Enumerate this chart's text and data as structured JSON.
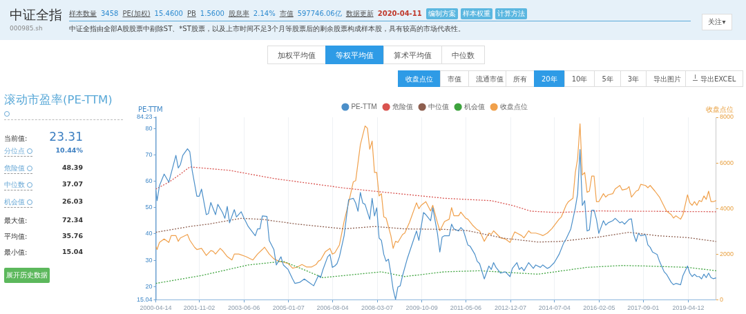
{
  "chart_data": [
    {
      "type": "other",
      "title": "中证全指",
      "subtitle": "000985.sh",
      "annotations": [
        "样本数量",
        "3458",
        "PE(加权)",
        "15.4600",
        "PB",
        "1.5600",
        "股息率",
        "2.14%",
        "市值",
        "597746.06亿",
        "数据更新",
        "2020-04-11",
        "编制方案",
        "样本权重",
        "计算方法",
        "中证全指由全部A股股票中剔除ST、*ST股票，以及上市时间不足3个月等股票后的剩余股票构成样本股，具有较高的市场代表性。",
        "关注▾"
      ]
    },
    {
      "type": "other",
      "annotations": [
        "加权平均值",
        "等权平均值",
        "算术平均值",
        "中位数"
      ]
    },
    {
      "type": "other",
      "annotations": [
        "收盘点位",
        "市值",
        "流通市值",
        "所有",
        "20年",
        "10年",
        "5年",
        "3年",
        "导出图片",
        "导出EXCEL"
      ]
    },
    {
      "type": "other",
      "title": "滚动市盈率(PE-TTM)",
      "annotations": [
        "当前值:",
        "23.31",
        "分位点",
        "10.44%",
        "危险值",
        "48.39",
        "中位数",
        "37.07",
        "机会值",
        "26.03",
        "最大值:",
        "72.34",
        "平均值:",
        "35.76",
        "最小值:",
        "15.04",
        "展开历史数据"
      ]
    },
    {
      "type": "line",
      "ylabel": "PE-TTM",
      "y2label": "收盘点位",
      "xlim": [
        "2000-04-14",
        "2020-04-10"
      ],
      "xticks": [
        "2000-04-14",
        "2001-11-02",
        "2003-06-06",
        "2005-01-07",
        "2006-08-04",
        "2008-03-07",
        "2009-10-09",
        "2011-05-06",
        "2012-12-07",
        "2014-07-04",
        "2016-02-05",
        "2017-09-01",
        "2019-04-12"
      ],
      "ylim": [
        15.04,
        84.23
      ],
      "yticks": [
        15.04,
        20,
        30,
        40,
        50,
        60,
        70,
        80,
        84.23
      ],
      "y2lim": [
        0,
        8000
      ],
      "y2ticks": [
        0,
        2000,
        4000,
        6000,
        8000
      ],
      "grid": "x",
      "legend": "top",
      "marker": "none",
      "series": [
        {
          "name": "PE-TTM",
          "color": "#4b8fc9",
          "line_style": "solid",
          "x": [
            "2000-04-14",
            "2000-05",
            "2000-06",
            "2000-08",
            "2000-10",
            "2001-01",
            "2001-02",
            "2001-03",
            "2001-04",
            "2001-06",
            "2001-07",
            "2001-08",
            "2001-10",
            "2001-11",
            "2001-12",
            "2002-02",
            "2002-03",
            "2002-04",
            "2002-06",
            "2002-07",
            "2002-09",
            "2002-10",
            "2002-11",
            "2002-12",
            "2003-02",
            "2003-03",
            "2003-05",
            "2003-06",
            "2003-08",
            "2003-11",
            "2003-12",
            "2004-01",
            "2004-02",
            "2004-04",
            "2004-05",
            "2004-07",
            "2004-08",
            "2004-10",
            "2004-11",
            "2005-01",
            "2005-03",
            "2005-04",
            "2005-06",
            "2005-08",
            "2005-10",
            "2005-12",
            "2006-02",
            "2006-03",
            "2006-04",
            "2006-06",
            "2006-07",
            "2006-08",
            "2006-09",
            "2006-10",
            "2006-11",
            "2007-01",
            "2007-03",
            "2007-05",
            "2007-06",
            "2007-07",
            "2007-08",
            "2007-09",
            "2007-10",
            "2007-12",
            "2008-01",
            "2008-02",
            "2008-03",
            "2008-04",
            "2008-05",
            "2008-06",
            "2008-07",
            "2008-08",
            "2008-09",
            "2008-10",
            "2008-11",
            "2008-12",
            "2009-01",
            "2009-02",
            "2009-04",
            "2009-08",
            "2009-09",
            "2009-11",
            "2009-12",
            "2010-02",
            "2010-03",
            "2010-05",
            "2010-06",
            "2010-07",
            "2010-08",
            "2010-10",
            "2010-11",
            "2010-12",
            "2011-02",
            "2011-03",
            "2011-04",
            "2011-06",
            "2011-07",
            "2011-09",
            "2011-10",
            "2011-11",
            "2012-01",
            "2012-03",
            "2012-04",
            "2012-05",
            "2012-06",
            "2012-08",
            "2012-10",
            "2012-12",
            "2013-01",
            "2013-03",
            "2013-04",
            "2013-05",
            "2013-06",
            "2013-08",
            "2013-10",
            "2013-11",
            "2014-01",
            "2014-02",
            "2014-04",
            "2014-05",
            "2014-07",
            "2014-09",
            "2014-11",
            "2014-12",
            "2015-02",
            "2015-04",
            "2015-05",
            "2015-06",
            "2015-07",
            "2015-08",
            "2015-09",
            "2015-10",
            "2015-11",
            "2015-12",
            "2016-01",
            "2016-02",
            "2016-04",
            "2016-05",
            "2016-06",
            "2016-08",
            "2016-09",
            "2016-11",
            "2016-12",
            "2017-01",
            "2017-03",
            "2017-04",
            "2017-05",
            "2017-06",
            "2017-07",
            "2017-08",
            "2017-10",
            "2017-11",
            "2017-12",
            "2018-01",
            "2018-03",
            "2018-04",
            "2018-06",
            "2018-07",
            "2018-09",
            "2018-10",
            "2018-11",
            "2019-01",
            "2019-02",
            "2019-04",
            "2019-05",
            "2019-06",
            "2019-07",
            "2019-08",
            "2019-09",
            "2019-10",
            "2019-11",
            "2019-12",
            "2020-01",
            "2020-02",
            "2020-03",
            "2020-04-10"
          ],
          "values": [
            56.5,
            52.6,
            58.3,
            62.7,
            59.6,
            69.8,
            65.0,
            66.3,
            69.8,
            72.3,
            71.2,
            64.1,
            54.3,
            54.3,
            57.0,
            47.3,
            47.7,
            51.9,
            47.3,
            51.2,
            48.1,
            45.9,
            50.4,
            44.2,
            49.2,
            46.4,
            48.4,
            46.4,
            42.8,
            39.3,
            41.9,
            41.9,
            46.8,
            46.6,
            37.5,
            34.0,
            28.2,
            31.3,
            28.2,
            26.5,
            22.9,
            21.2,
            21.6,
            22.9,
            21.6,
            20.3,
            24.2,
            23.4,
            26.5,
            31.3,
            32.2,
            27.3,
            27.8,
            28.7,
            31.3,
            39.3,
            53.0,
            53.5,
            51.7,
            48.6,
            55.7,
            51.7,
            51.2,
            45.5,
            53.5,
            46.8,
            49.9,
            38.4,
            37.5,
            32.2,
            29.6,
            30.4,
            25.1,
            18.9,
            15.1,
            19.8,
            20.3,
            24.2,
            30.4,
            41.1,
            37.5,
            48.1,
            47.3,
            45.0,
            49.9,
            40.2,
            33.1,
            38.8,
            39.3,
            39.3,
            43.7,
            41.9,
            41.1,
            42.4,
            41.5,
            35.8,
            35.3,
            32.2,
            29.6,
            28.7,
            22.9,
            27.8,
            26.5,
            29.1,
            27.3,
            25.1,
            25.6,
            23.8,
            26.9,
            29.1,
            26.5,
            27.3,
            26.0,
            29.1,
            26.9,
            28.2,
            27.3,
            28.2,
            26.9,
            27.3,
            29.1,
            32.2,
            36.6,
            38.0,
            41.9,
            49.9,
            55.2,
            72.0,
            50.8,
            52.6,
            41.1,
            41.5,
            49.0,
            49.0,
            45.5,
            40.2,
            45.0,
            43.3,
            44.2,
            45.0,
            45.9,
            44.2,
            44.6,
            43.7,
            45.5,
            45.7,
            39.7,
            37.1,
            40.2,
            39.3,
            39.7,
            35.8,
            34.9,
            33.1,
            32.2,
            29.6,
            25.6,
            24.7,
            21.6,
            20.7,
            21.2,
            20.7,
            24.2,
            27.8,
            25.1,
            23.8,
            24.7,
            23.8,
            23.8,
            22.9,
            24.7,
            23.4,
            25.1,
            23.4,
            23.0,
            23.3
          ]
        },
        {
          "name": "危险值",
          "color": "#d9534f",
          "line_style": "dotted",
          "x": [
            "2000-04-14",
            "2000-10",
            "2001-03",
            "2001-07",
            "2002-12",
            "2004-07",
            "2007-01",
            "2008-03",
            "2010-08",
            "2012-04",
            "2013-01",
            "2013-09",
            "2014-08",
            "2016-02",
            "2020-04-10"
          ],
          "values": [
            57.0,
            59.6,
            62.7,
            65.4,
            64.1,
            61.0,
            57.4,
            56.1,
            53.5,
            52.6,
            50.8,
            48.6,
            48.1,
            48.7,
            48.4
          ]
        },
        {
          "name": "中位值",
          "color": "#8d5e4e",
          "line_style": "dotted",
          "x": [
            "2000-04-14",
            "2001-07",
            "2002-03",
            "2003-05",
            "2004-02",
            "2005-05",
            "2007-01",
            "2008-02",
            "2009-03",
            "2010-08",
            "2011-06",
            "2012-09",
            "2013-12",
            "2014-09",
            "2016-02",
            "2017-03",
            "2018-03",
            "2019-04",
            "2020-04-10"
          ],
          "values": [
            40.6,
            42.8,
            43.7,
            45.9,
            45.5,
            43.7,
            41.9,
            42.8,
            41.9,
            41.7,
            41.2,
            38.4,
            36.9,
            37.1,
            38.8,
            40.6,
            39.3,
            38.6,
            37.1
          ]
        },
        {
          "name": "机会值",
          "color": "#3da33d",
          "line_style": "dotted",
          "x": [
            "2000-04-14",
            "2001-12",
            "2003-08",
            "2004-11",
            "2006-04",
            "2008-05",
            "2009-03",
            "2010-08",
            "2011-11",
            "2013-12",
            "2015-09",
            "2016-12",
            "2017-10",
            "2019-04",
            "2020-04-10"
          ],
          "values": [
            21.2,
            24.2,
            28.2,
            29.6,
            23.4,
            25.6,
            23.8,
            25.6,
            26.0,
            24.7,
            27.3,
            28.0,
            27.8,
            27.3,
            26.0
          ]
        },
        {
          "name": "收盘点位",
          "color": "#f0a04b",
          "line_style": "solid",
          "axis": "y2",
          "x": [
            "2000-04-14",
            "2000-05",
            "2000-06",
            "2000-08",
            "2000-10",
            "2000-11",
            "2001-01",
            "2001-02",
            "2001-03",
            "2001-06",
            "2001-07",
            "2001-09",
            "2001-10",
            "2001-12",
            "2002-02",
            "2002-04",
            "2002-05",
            "2002-06",
            "2002-08",
            "2002-09",
            "2002-11",
            "2003-01",
            "2003-02",
            "2003-04",
            "2003-07",
            "2003-10",
            "2003-12",
            "2004-02",
            "2004-03",
            "2004-05",
            "2004-07",
            "2004-09",
            "2004-11",
            "2005-01",
            "2005-03",
            "2005-05",
            "2005-07",
            "2005-09",
            "2005-11",
            "2006-01",
            "2006-02",
            "2006-03",
            "2006-05",
            "2006-07",
            "2006-08",
            "2006-09",
            "2006-11",
            "2007-01",
            "2007-03",
            "2007-05",
            "2007-06",
            "2007-08",
            "2007-10",
            "2007-11",
            "2007-12",
            "2008-01",
            "2008-02",
            "2008-03",
            "2008-04",
            "2008-05",
            "2008-06",
            "2008-07",
            "2008-09",
            "2008-10",
            "2008-11",
            "2008-12",
            "2009-02",
            "2009-03",
            "2009-05",
            "2009-08",
            "2009-09",
            "2009-10",
            "2009-12",
            "2010-02",
            "2010-03",
            "2010-05",
            "2010-06",
            "2010-08",
            "2010-10",
            "2010-11",
            "2010-12",
            "2011-02",
            "2011-03",
            "2011-05",
            "2011-06",
            "2011-08",
            "2011-10",
            "2011-11",
            "2012-01",
            "2012-03",
            "2012-04",
            "2012-05",
            "2012-08",
            "2012-10",
            "2012-12",
            "2013-02",
            "2013-03",
            "2013-05",
            "2013-06",
            "2013-08",
            "2013-09",
            "2013-11",
            "2014-01",
            "2014-02",
            "2014-04",
            "2014-06",
            "2014-09",
            "2014-10",
            "2014-12",
            "2015-01",
            "2015-03",
            "2015-04",
            "2015-05",
            "2015-06",
            "2015-07",
            "2015-08",
            "2015-09",
            "2015-10",
            "2015-11",
            "2015-12",
            "2016-01",
            "2016-02",
            "2016-04",
            "2016-05",
            "2016-06",
            "2016-08",
            "2016-09",
            "2016-11",
            "2016-12",
            "2017-02",
            "2017-03",
            "2017-04",
            "2017-06",
            "2017-07",
            "2017-08",
            "2017-10",
            "2017-11",
            "2017-12",
            "2018-02",
            "2018-04",
            "2018-05",
            "2018-07",
            "2018-09",
            "2018-10",
            "2018-11",
            "2019-01",
            "2019-02",
            "2019-04",
            "2019-05",
            "2019-06",
            "2019-07",
            "2019-08",
            "2019-09",
            "2019-10",
            "2019-11",
            "2019-12",
            "2020-01",
            "2020-02",
            "2020-03",
            "2020-04-10"
          ],
          "values": [
            2350,
            2200,
            2510,
            2660,
            2510,
            2810,
            2810,
            2560,
            2710,
            2860,
            2610,
            2300,
            2200,
            2250,
            1940,
            2150,
            2120,
            2000,
            2250,
            2150,
            1890,
            1740,
            2000,
            2000,
            1890,
            1740,
            2000,
            2200,
            2300,
            2000,
            1790,
            1690,
            1640,
            1590,
            1380,
            1430,
            1540,
            1430,
            1430,
            1540,
            1690,
            1740,
            2100,
            2250,
            2000,
            2050,
            2400,
            3430,
            4250,
            5170,
            5220,
            6800,
            7620,
            7520,
            6600,
            6960,
            5580,
            5580,
            4550,
            4650,
            3630,
            3580,
            2810,
            2250,
            2560,
            2510,
            2860,
            2920,
            3380,
            4250,
            3990,
            4140,
            4300,
            3890,
            4140,
            3380,
            3020,
            3430,
            3530,
            4040,
            3680,
            3680,
            3840,
            3580,
            3530,
            3270,
            3070,
            3020,
            2560,
            2920,
            2860,
            3020,
            2710,
            2660,
            2510,
            2970,
            2920,
            2810,
            2710,
            3020,
            2920,
            2920,
            2860,
            2810,
            2920,
            3120,
            3530,
            3630,
            4140,
            4300,
            4450,
            5580,
            6190,
            7720,
            5470,
            5580,
            4710,
            4760,
            5420,
            5420,
            4300,
            4300,
            4650,
            4500,
            4600,
            4650,
            4860,
            5010,
            4810,
            4860,
            4960,
            4500,
            4760,
            4810,
            5060,
            5010,
            4910,
            5010,
            4760,
            4500,
            4300,
            3890,
            3730,
            3580,
            3680,
            3530,
            3730,
            4600,
            4250,
            4140,
            4300,
            4140,
            4350,
            4300,
            4550,
            4400,
            4760,
            4300,
            4300,
            4350
          ]
        }
      ]
    }
  ]
}
